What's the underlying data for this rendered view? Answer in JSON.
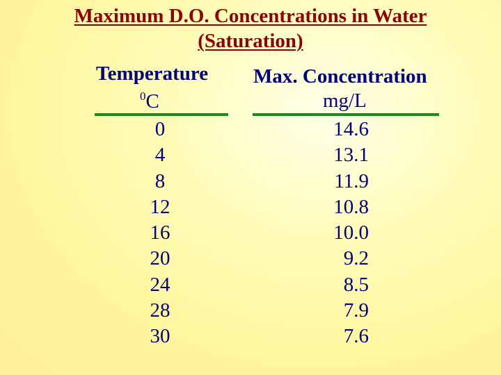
{
  "title_line1": "Maximum D.O. Concentrations in Water",
  "title_line2": "(Saturation)",
  "columns": {
    "temperature": {
      "header": "Temperature",
      "unit_sup": "0",
      "unit": "C"
    },
    "concentration": {
      "header": "Max. Concentration",
      "unit": "mg/L"
    }
  },
  "rows": [
    {
      "temp": "0",
      "conc": "14.6"
    },
    {
      "temp": "4",
      "conc": "13.1"
    },
    {
      "temp": "8",
      "conc": "11.9"
    },
    {
      "temp": "12",
      "conc": "10.8"
    },
    {
      "temp": "16",
      "conc": "10.0"
    },
    {
      "temp": "20",
      "conc": "9.2"
    },
    {
      "temp": "24",
      "conc": "8.5"
    },
    {
      "temp": "28",
      "conc": "7.9"
    },
    {
      "temp": "30",
      "conc": "7.6"
    }
  ],
  "colors": {
    "title": "#8b0000",
    "text": "#00007a",
    "rule": "#1a8a1a",
    "background": "#fff6a0"
  }
}
